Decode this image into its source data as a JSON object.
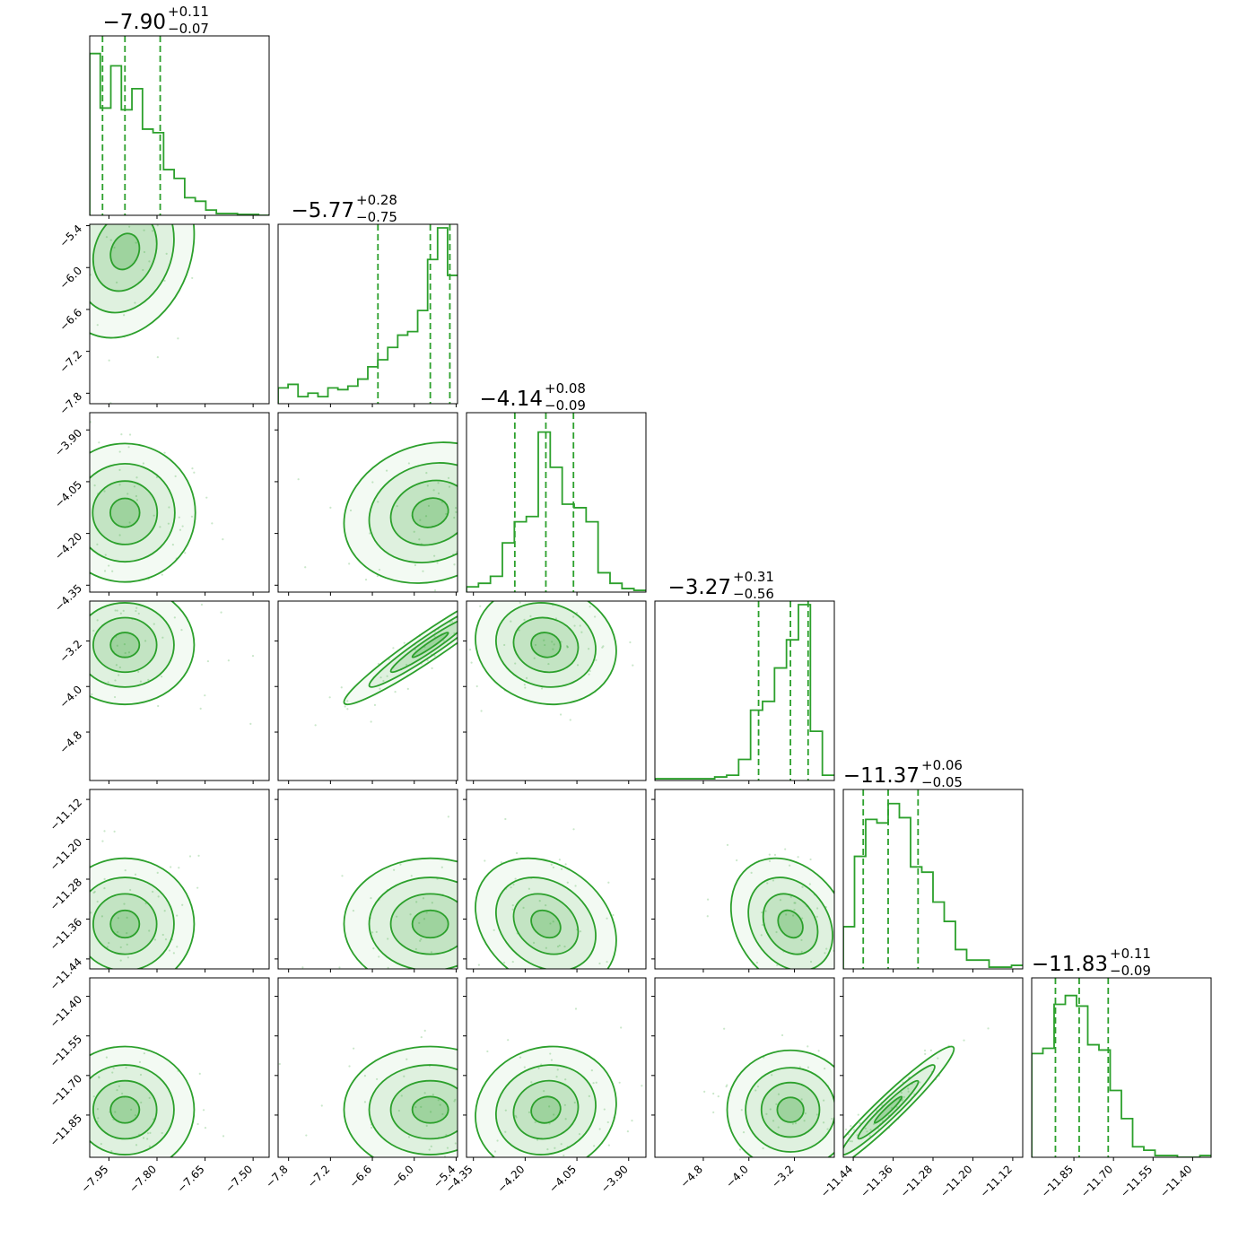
{
  "chart_data": {
    "type": "corner",
    "colors": {
      "line": "#2ca02c",
      "fill": "#2ca02c",
      "frame": "#000000"
    },
    "parameters": [
      {
        "title_main": "−7.90",
        "title_plus": "+0.11",
        "title_minus": "−0.07",
        "median": -7.9,
        "q16": -7.97,
        "q84": -7.79,
        "range": [
          -8.01,
          -7.45
        ],
        "ticks": [
          -7.95,
          -7.8,
          -7.65,
          -7.5
        ],
        "tick_labels": [
          "−7.95",
          "−7.80",
          "−7.65",
          "−7.50"
        ]
      },
      {
        "title_main": "−5.77",
        "title_plus": "+0.28",
        "title_minus": "−0.75",
        "median": -5.77,
        "q16": -6.52,
        "q84": -5.49,
        "range": [
          -7.95,
          -5.38
        ],
        "ticks": [
          -7.8,
          -7.2,
          -6.6,
          -6.0,
          -5.4
        ],
        "tick_labels": [
          "−7.8",
          "−7.2",
          "−6.6",
          "−6.0",
          "−5.4"
        ]
      },
      {
        "title_main": "−4.14",
        "title_plus": "+0.08",
        "title_minus": "−0.09",
        "median": -4.14,
        "q16": -4.23,
        "q84": -4.06,
        "range": [
          -4.37,
          -3.85
        ],
        "ticks": [
          -4.35,
          -4.2,
          -4.05,
          -3.9
        ],
        "tick_labels": [
          "−4.35",
          "−4.20",
          "−4.05",
          "−3.90"
        ]
      },
      {
        "title_main": "−3.27",
        "title_plus": "+0.31",
        "title_minus": "−0.56",
        "median": -3.27,
        "q16": -3.83,
        "q84": -2.96,
        "range": [
          -5.65,
          -2.5
        ],
        "ticks": [
          -4.8,
          -4.0,
          -3.2
        ],
        "tick_labels": [
          "−4.8",
          "−4.0",
          "−3.2"
        ]
      },
      {
        "title_main": "−11.37",
        "title_plus": "+0.06",
        "title_minus": "−0.05",
        "median": -11.37,
        "q16": -11.42,
        "q84": -11.31,
        "range": [
          -11.46,
          -11.1
        ],
        "ticks": [
          -11.44,
          -11.36,
          -11.28,
          -11.2,
          -11.12
        ],
        "tick_labels": [
          "−11.44",
          "−11.36",
          "−11.28",
          "−11.20",
          "−11.12"
        ]
      },
      {
        "title_main": "−11.83",
        "title_plus": "+0.11",
        "title_minus": "−0.09",
        "median": -11.83,
        "q16": -11.92,
        "q84": -11.72,
        "range": [
          -12.01,
          -11.33
        ],
        "ticks": [
          -11.85,
          -11.7,
          -11.55,
          -11.4
        ],
        "tick_labels": [
          "−11.85",
          "−11.70",
          "−11.55",
          "−11.40"
        ]
      }
    ],
    "histograms": [
      [
        0.92,
        0.61,
        0.85,
        0.6,
        0.72,
        0.49,
        0.47,
        0.26,
        0.21,
        0.1,
        0.08,
        0.03,
        0.01,
        0.01,
        0.005,
        0.005,
        0.0
      ],
      [
        0.09,
        0.11,
        0.04,
        0.06,
        0.04,
        0.09,
        0.08,
        0.1,
        0.14,
        0.21,
        0.25,
        0.32,
        0.39,
        0.41,
        0.53,
        0.82,
        1.0,
        0.73
      ],
      [
        0.03,
        0.05,
        0.09,
        0.28,
        0.4,
        0.43,
        0.91,
        0.71,
        0.5,
        0.48,
        0.4,
        0.11,
        0.05,
        0.02,
        0.01
      ],
      [
        0.01,
        0.01,
        0.01,
        0.01,
        0.01,
        0.02,
        0.03,
        0.12,
        0.4,
        0.45,
        0.64,
        0.8,
        1.0,
        0.28,
        0.03
      ],
      [
        0.24,
        0.64,
        0.85,
        0.83,
        0.94,
        0.86,
        0.58,
        0.55,
        0.38,
        0.27,
        0.11,
        0.05,
        0.05,
        0.01,
        0.01,
        0.02
      ],
      [
        0.59,
        0.62,
        0.87,
        0.92,
        0.86,
        0.64,
        0.61,
        0.38,
        0.22,
        0.06,
        0.04,
        0.01,
        0.01,
        0.0,
        0.0,
        0.01
      ]
    ],
    "correlations": [
      [],
      [
        0.2
      ],
      [
        0.0,
        0.15
      ],
      [
        0.0,
        0.96,
        -0.1
      ],
      [
        0.0,
        0.0,
        -0.25,
        -0.25
      ],
      [
        0.0,
        0.0,
        0.1,
        0.0,
        0.96
      ]
    ]
  }
}
